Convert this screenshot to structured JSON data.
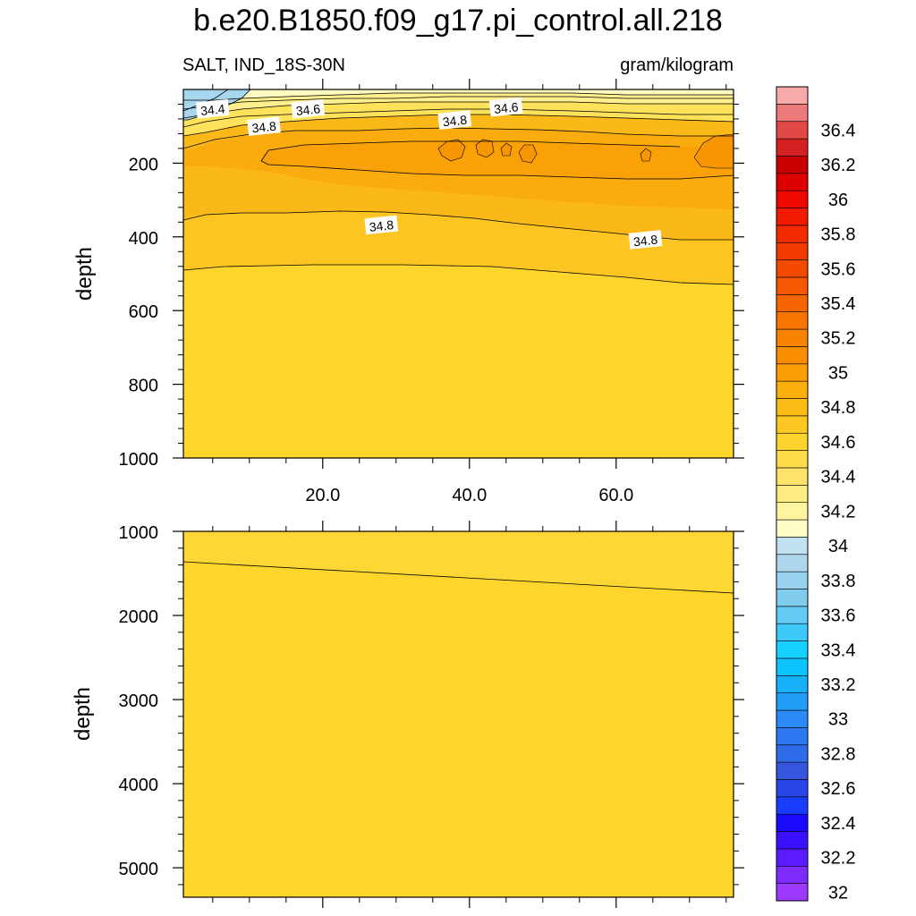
{
  "chart_data": {
    "type": "heatmap",
    "title": "b.e20.B1850.f09_g17.pi_control.all.218",
    "left_string": "SALT, IND_18S-30N",
    "right_string": "gram/kilogram",
    "panels": [
      {
        "name": "upper",
        "ylabel": "depth",
        "ylim": [
          1000,
          0
        ],
        "yticks": [
          200,
          400,
          600,
          800,
          1000
        ],
        "xlim": [
          1,
          76
        ],
        "xticks": [
          20,
          40,
          60
        ],
        "xticklabels": [
          "20.0",
          "40.0",
          "60.0"
        ],
        "contour_labels": [
          {
            "text": "34.4",
            "x": 5,
            "depth": 55
          },
          {
            "text": "34.6",
            "x": 18,
            "depth": 55
          },
          {
            "text": "34.8",
            "x": 12,
            "depth": 102
          },
          {
            "text": "34.8",
            "x": 38,
            "depth": 85
          },
          {
            "text": "34.6",
            "x": 45,
            "depth": 50
          },
          {
            "text": "34.8",
            "x": 28,
            "depth": 370
          },
          {
            "text": "34.8",
            "x": 64,
            "depth": 410
          }
        ]
      },
      {
        "name": "lower",
        "ylabel": "depth",
        "ylim": [
          5350,
          1000
        ],
        "yticks": [
          1000,
          2000,
          3000,
          4000,
          5000
        ],
        "xlim": [
          1,
          76
        ],
        "xticks": [
          20,
          40,
          60
        ]
      }
    ],
    "colorbar": {
      "levels": [
        "32",
        "32.2",
        "32.4",
        "32.6",
        "32.8",
        "33",
        "33.2",
        "33.4",
        "33.6",
        "33.8",
        "34",
        "34.2",
        "34.4",
        "34.6",
        "34.8",
        "35",
        "35.2",
        "35.4",
        "35.6",
        "35.8",
        "36",
        "36.2",
        "36.4"
      ],
      "colors": [
        "#9b39ff",
        "#7d2bff",
        "#5a1cff",
        "#3b10ff",
        "#1a08ff",
        "#1a3cff",
        "#2846e8",
        "#3656dd",
        "#2f6ae8",
        "#2b78f2",
        "#2a8af7",
        "#229ef9",
        "#17b0fb",
        "#0cc3fd",
        "#16d1ff",
        "#3ec9fb",
        "#63c9f5",
        "#80cdf0",
        "#99d2ee",
        "#aed7ee",
        "#c2e2f2",
        "#fffec8",
        "#fff5a0",
        "#ffeb80",
        "#ffe36a",
        "#fedc4a",
        "#fdd42e",
        "#fcc821",
        "#fbbc15",
        "#faaf0d",
        "#fa9f05",
        "#f98f00",
        "#f88300",
        "#f77400",
        "#f66500",
        "#f55800",
        "#f44a00",
        "#f33a00",
        "#f22b00",
        "#f11a00",
        "#ef0800",
        "#dc0000",
        "#c80000",
        "#d42020",
        "#e14848",
        "#ec7a7a",
        "#f7aaaa"
      ]
    }
  }
}
